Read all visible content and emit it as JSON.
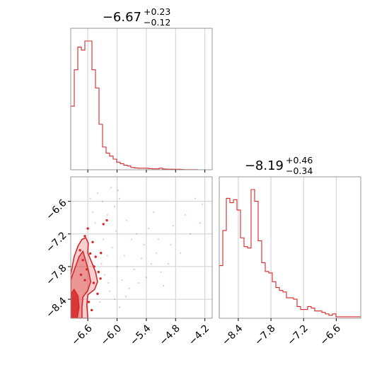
{
  "colors": {
    "series": "#d62728",
    "grid": "#cfcfcf",
    "frame": "#9a9a9a"
  },
  "chart_data": [
    {
      "type": "histogram",
      "panel": "top-left",
      "title": {
        "median": "−6.67",
        "plus": "+0.23",
        "minus": "−0.12"
      },
      "xlim": [
        -6.95,
        -4.05
      ],
      "x_ticks": [
        -6.6,
        -6.0,
        -5.4,
        -4.8,
        -4.2
      ],
      "bin_edges_start": -6.95,
      "bin_width": 0.0725,
      "counts": [
        0.42,
        0.66,
        0.81,
        0.79,
        0.85,
        0.85,
        0.66,
        0.54,
        0.3,
        0.15,
        0.11,
        0.09,
        0.07,
        0.05,
        0.04,
        0.03,
        0.025,
        0.015,
        0.012,
        0.01,
        0.01,
        0.01,
        0.008,
        0.006,
        0.006,
        0.01,
        0.005,
        0.004,
        0.004,
        0.003,
        0.003,
        0.002,
        0.001,
        0.001,
        0.001,
        0.001,
        0.0,
        0.0,
        0.0,
        0.0
      ]
    },
    {
      "type": "histogram",
      "panel": "bottom-right",
      "title": {
        "median": "−8.19",
        "plus": "+0.46",
        "minus": "−0.34"
      },
      "xlim": [
        -8.75,
        -6.15
      ],
      "x_ticks": [
        -8.4,
        -7.8,
        -7.2,
        -6.6
      ],
      "bin_edges_start": -8.75,
      "bin_width": 0.065,
      "counts": [
        0.36,
        0.6,
        0.82,
        0.79,
        0.81,
        0.74,
        0.55,
        0.49,
        0.48,
        0.88,
        0.8,
        0.53,
        0.38,
        0.32,
        0.31,
        0.25,
        0.21,
        0.19,
        0.18,
        0.14,
        0.14,
        0.13,
        0.08,
        0.06,
        0.06,
        0.08,
        0.07,
        0.05,
        0.05,
        0.04,
        0.03,
        0.02,
        0.03,
        0.01,
        0.01,
        0.01,
        0.01,
        0.01,
        0.01,
        0.01
      ]
    },
    {
      "type": "scatter",
      "panel": "bottom-left",
      "xlim": [
        -6.95,
        -4.05
      ],
      "ylim": [
        -8.75,
        -6.15
      ],
      "x_ticks": [
        -6.6,
        -6.0,
        -5.4,
        -4.8,
        -4.2
      ],
      "y_ticks": [
        -6.6,
        -7.2,
        -7.8,
        -8.4
      ],
      "contours": [
        {
          "level": "outer",
          "points": [
            [
              -6.95,
              -8.75
            ],
            [
              -6.95,
              -7.95
            ],
            [
              -6.88,
              -7.62
            ],
            [
              -6.8,
              -7.42
            ],
            [
              -6.72,
              -7.3
            ],
            [
              -6.64,
              -7.27
            ],
            [
              -6.59,
              -7.37
            ],
            [
              -6.6,
              -7.55
            ],
            [
              -6.52,
              -7.72
            ],
            [
              -6.44,
              -7.9
            ],
            [
              -6.4,
              -8.08
            ],
            [
              -6.46,
              -8.22
            ],
            [
              -6.6,
              -8.32
            ],
            [
              -6.62,
              -8.5
            ],
            [
              -6.6,
              -8.75
            ]
          ]
        },
        {
          "level": "middle",
          "points": [
            [
              -6.95,
              -8.75
            ],
            [
              -6.95,
              -8.05
            ],
            [
              -6.86,
              -7.82
            ],
            [
              -6.78,
              -7.62
            ],
            [
              -6.7,
              -7.52
            ],
            [
              -6.64,
              -7.7
            ],
            [
              -6.58,
              -7.9
            ],
            [
              -6.54,
              -8.08
            ],
            [
              -6.6,
              -8.24
            ],
            [
              -6.7,
              -8.36
            ],
            [
              -6.72,
              -8.55
            ],
            [
              -6.72,
              -8.75
            ]
          ]
        },
        {
          "level": "inner",
          "points": [
            [
              -6.95,
              -8.75
            ],
            [
              -6.95,
              -8.3
            ],
            [
              -6.88,
              -8.22
            ],
            [
              -6.8,
              -8.34
            ],
            [
              -6.78,
              -8.55
            ],
            [
              -6.82,
              -8.75
            ]
          ]
        }
      ],
      "density_points": [
        [
          -6.6,
          -7.1
        ],
        [
          -6.5,
          -7.35
        ],
        [
          -6.44,
          -7.62
        ],
        [
          -6.38,
          -7.9
        ],
        [
          -6.34,
          -8.02
        ],
        [
          -6.47,
          -7.8
        ],
        [
          -6.55,
          -7.56
        ],
        [
          -6.66,
          -7.24
        ],
        [
          -6.28,
          -7.02
        ],
        [
          -6.21,
          -6.95
        ],
        [
          -6.33,
          -7.55
        ],
        [
          -6.4,
          -8.3
        ],
        [
          -6.48,
          -8.1
        ],
        [
          -6.62,
          -7.85
        ],
        [
          -6.7,
          -7.68
        ],
        [
          -6.76,
          -7.5
        ],
        [
          -6.58,
          -8.45
        ],
        [
          -6.52,
          -8.6
        ],
        [
          -6.66,
          -8.05
        ],
        [
          -6.74,
          -7.95
        ]
      ],
      "scatter_points": [
        [
          -6.4,
          -6.45
        ],
        [
          -6.3,
          -6.6
        ],
        [
          -6.2,
          -6.85
        ],
        [
          -6.05,
          -6.7
        ],
        [
          -5.95,
          -6.55
        ],
        [
          -5.8,
          -6.95
        ],
        [
          -5.7,
          -7.3
        ],
        [
          -5.6,
          -7.2
        ],
        [
          -5.5,
          -7.65
        ],
        [
          -5.45,
          -7.4
        ],
        [
          -5.35,
          -7.1
        ],
        [
          -5.2,
          -7.55
        ],
        [
          -5.1,
          -7.9
        ],
        [
          -5.05,
          -8.15
        ],
        [
          -4.95,
          -7.75
        ],
        [
          -4.85,
          -7.05
        ],
        [
          -4.7,
          -7.55
        ],
        [
          -4.6,
          -6.85
        ],
        [
          -4.4,
          -6.55
        ],
        [
          -4.25,
          -6.65
        ],
        [
          -6.1,
          -7.45
        ],
        [
          -6.0,
          -7.8
        ],
        [
          -5.9,
          -8.05
        ],
        [
          -5.85,
          -7.6
        ],
        [
          -5.75,
          -8.2
        ],
        [
          -6.25,
          -7.95
        ],
        [
          -6.15,
          -8.25
        ],
        [
          -6.05,
          -8.4
        ],
        [
          -5.95,
          -8.55
        ],
        [
          -6.35,
          -8.45
        ],
        [
          -6.2,
          -7.6
        ],
        [
          -6.28,
          -7.3
        ],
        [
          -5.65,
          -7.85
        ],
        [
          -5.55,
          -8.1
        ],
        [
          -5.4,
          -8.0
        ],
        [
          -5.3,
          -7.75
        ],
        [
          -6.5,
          -6.8
        ],
        [
          -6.45,
          -7.0
        ],
        [
          -6.55,
          -6.55
        ],
        [
          -5.25,
          -6.8
        ],
        [
          -5.15,
          -7.3
        ],
        [
          -4.9,
          -7.4
        ],
        [
          -4.5,
          -7.2
        ],
        [
          -4.3,
          -7.0
        ],
        [
          -6.12,
          -6.35
        ],
        [
          -5.98,
          -6.4
        ],
        [
          -6.32,
          -7.75
        ],
        [
          -6.18,
          -8.1
        ],
        [
          -5.82,
          -8.35
        ],
        [
          -6.02,
          -7.15
        ]
      ]
    }
  ]
}
